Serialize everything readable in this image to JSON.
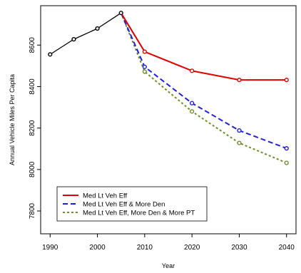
{
  "chart_data": {
    "type": "line",
    "title": "",
    "xlabel": "Year",
    "ylabel": "Annual Vehicle Miles Per Capita",
    "xlim": [
      1988,
      2042
    ],
    "ylim": [
      7690,
      8790
    ],
    "x_ticks": [
      1990,
      2000,
      2010,
      2020,
      2030,
      2040
    ],
    "x_tick_labels": [
      "1990",
      "2000",
      "2010",
      "2020",
      "2030",
      "2040"
    ],
    "y_ticks": [
      7800,
      8000,
      8200,
      8400,
      8600
    ],
    "y_tick_labels": [
      "7800",
      "8000",
      "8200",
      "8400",
      "8600"
    ],
    "grid": false,
    "legend": "bottom-left",
    "historical": {
      "color": "#000000",
      "x": [
        1990,
        1995,
        2000,
        2005
      ],
      "y": [
        8555,
        8628,
        8680,
        8755
      ]
    },
    "series": [
      {
        "name": "Med Lt Veh Eff",
        "color": "#e00000",
        "style": "solid",
        "x": [
          2005,
          2010,
          2020,
          2030,
          2040
        ],
        "y": [
          8755,
          8568,
          8476,
          8432,
          8432
        ]
      },
      {
        "name": "Med Lt Veh Eff & More Den",
        "color": "#1f1fe0",
        "style": "dashed",
        "x": [
          2005,
          2010,
          2020,
          2030,
          2040
        ],
        "y": [
          8755,
          8495,
          8320,
          8188,
          8102
        ]
      },
      {
        "name": "Med Lt Veh Eff, More Den & More PT",
        "color": "#6b8e23",
        "style": "dotted",
        "x": [
          2005,
          2010,
          2020,
          2030,
          2040
        ],
        "y": [
          8755,
          8472,
          8280,
          8128,
          8032
        ]
      }
    ]
  }
}
